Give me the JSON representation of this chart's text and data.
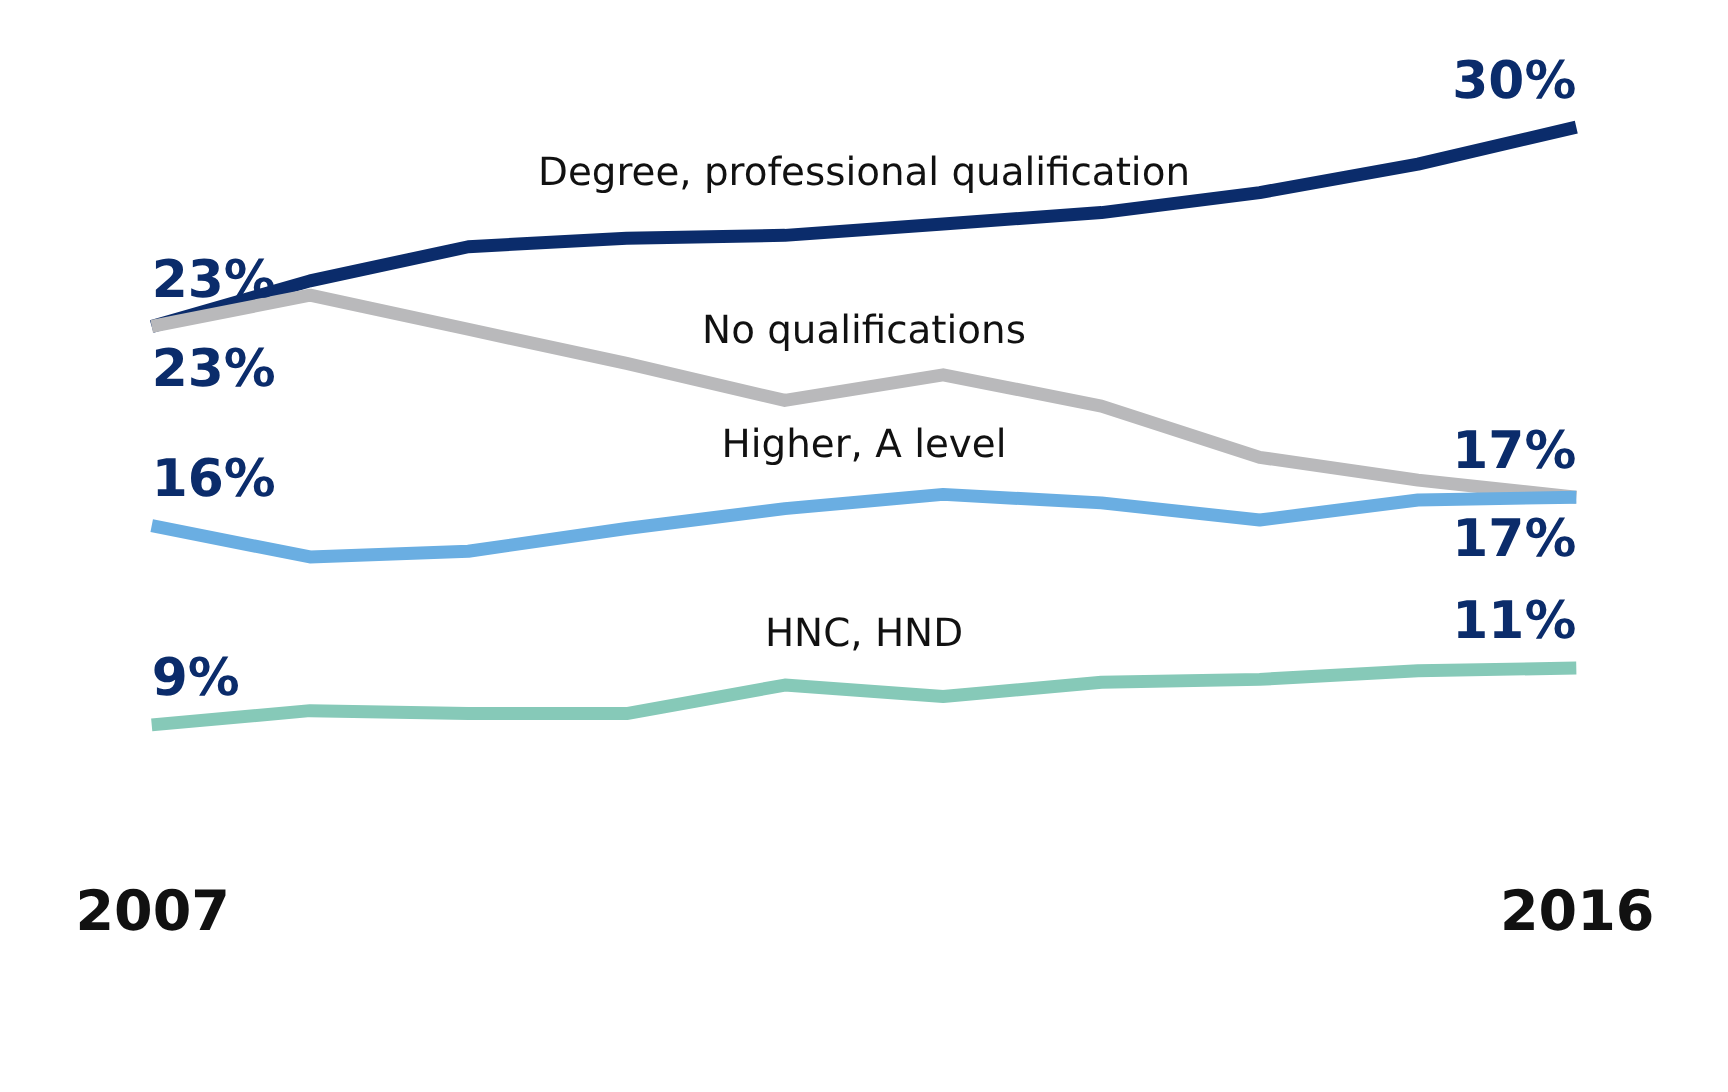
{
  "chart_data": {
    "type": "line",
    "x": [
      2007,
      2008,
      2009,
      2010,
      2011,
      2012,
      2013,
      2014,
      2015,
      2016
    ],
    "xlim": [
      2007,
      2016
    ],
    "xticks": [
      2007,
      2016
    ],
    "tick_labels": "x",
    "grid": false,
    "legend": false,
    "marker": "none",
    "line_style": "solid",
    "series": [
      {
        "name": "Degree, professional qualification",
        "color": "#0b2c6b",
        "values": [
          23,
          24.6,
          25.8,
          26.1,
          26.2,
          26.6,
          27.0,
          27.7,
          28.7,
          30
        ],
        "value_labels": [
          "23%",
          null,
          null,
          null,
          null,
          null,
          null,
          null,
          null,
          "30%"
        ]
      },
      {
        "name": "No qualifications",
        "color": "#b9b9bb",
        "values": [
          23,
          24.1,
          22.9,
          21.7,
          20.4,
          21.3,
          20.2,
          18.4,
          17.6,
          17
        ],
        "value_labels": [
          "23%",
          null,
          null,
          null,
          null,
          null,
          null,
          null,
          null,
          "17%"
        ]
      },
      {
        "name": "Higher, A level",
        "color": "#6aaee2",
        "values": [
          16,
          14.9,
          15.1,
          15.9,
          16.6,
          17.1,
          16.8,
          16.2,
          16.9,
          17
        ],
        "value_labels": [
          "16%",
          null,
          null,
          null,
          null,
          null,
          null,
          null,
          null,
          "17%"
        ]
      },
      {
        "name": "HNC, HND",
        "color": "#86c9b8",
        "values": [
          9,
          9.5,
          9.4,
          9.4,
          10.4,
          10.0,
          10.5,
          10.6,
          10.9,
          11
        ],
        "value_labels": [
          "9%",
          null,
          null,
          null,
          null,
          null,
          null,
          null,
          null,
          "11%"
        ]
      }
    ]
  }
}
